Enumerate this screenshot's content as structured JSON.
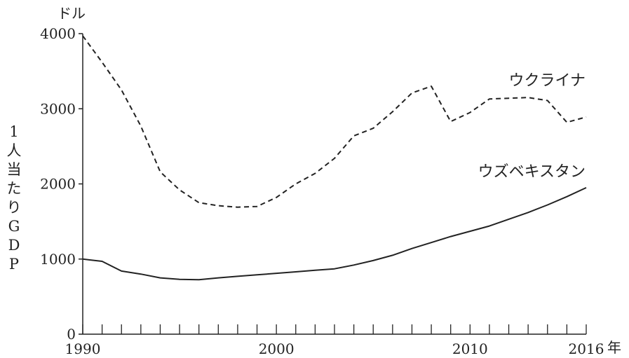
{
  "chart_data": {
    "type": "line",
    "y_unit": "ドル",
    "x_unit": "年",
    "ylabel": "1人当たりGDP",
    "ylim": [
      0,
      4000
    ],
    "xlim": [
      1990,
      2016
    ],
    "y_ticks": [
      0,
      1000,
      2000,
      3000,
      4000
    ],
    "y_tick_labels": [
      "0",
      "1000",
      "2000",
      "3000",
      "4000"
    ],
    "x_ticks": [
      1990,
      1991,
      1992,
      1993,
      1994,
      1995,
      1996,
      1997,
      1998,
      1999,
      2000,
      2001,
      2002,
      2003,
      2004,
      2005,
      2006,
      2007,
      2008,
      2009,
      2010,
      2011,
      2012,
      2013,
      2014,
      2015,
      2016
    ],
    "x_tick_labels": [
      {
        "x": 1990,
        "text": "1990"
      },
      {
        "x": 2000,
        "text": "2000"
      },
      {
        "x": 2010,
        "text": "2010"
      },
      {
        "x": 2016,
        "text": "2016"
      }
    ],
    "series": [
      {
        "name": "ウクライナ",
        "style": "dashed",
        "color": "#222222",
        "x": [
          1990,
          1991,
          1992,
          1993,
          1994,
          1995,
          1996,
          1997,
          1998,
          1999,
          2000,
          2001,
          2002,
          2003,
          2004,
          2005,
          2006,
          2007,
          2008,
          2009,
          2010,
          2011,
          2012,
          2013,
          2014,
          2015,
          2016
        ],
        "values": [
          3970,
          3620,
          3250,
          2770,
          2160,
          1920,
          1750,
          1710,
          1690,
          1700,
          1820,
          2000,
          2140,
          2340,
          2640,
          2740,
          2960,
          3210,
          3300,
          2830,
          2950,
          3130,
          3140,
          3150,
          3110,
          2820,
          2890
        ]
      },
      {
        "name": "ウズベキスタン",
        "style": "solid",
        "color": "#222222",
        "x": [
          1990,
          1991,
          1992,
          1993,
          1994,
          1995,
          1996,
          1997,
          1998,
          1999,
          2000,
          2001,
          2002,
          2003,
          2004,
          2005,
          2006,
          2007,
          2008,
          2009,
          2010,
          2011,
          2012,
          2013,
          2014,
          2015,
          2016
        ],
        "values": [
          1000,
          970,
          840,
          800,
          750,
          730,
          725,
          750,
          770,
          790,
          810,
          830,
          850,
          870,
          920,
          980,
          1050,
          1140,
          1220,
          1300,
          1370,
          1440,
          1530,
          1620,
          1720,
          1830,
          1950
        ]
      }
    ]
  }
}
